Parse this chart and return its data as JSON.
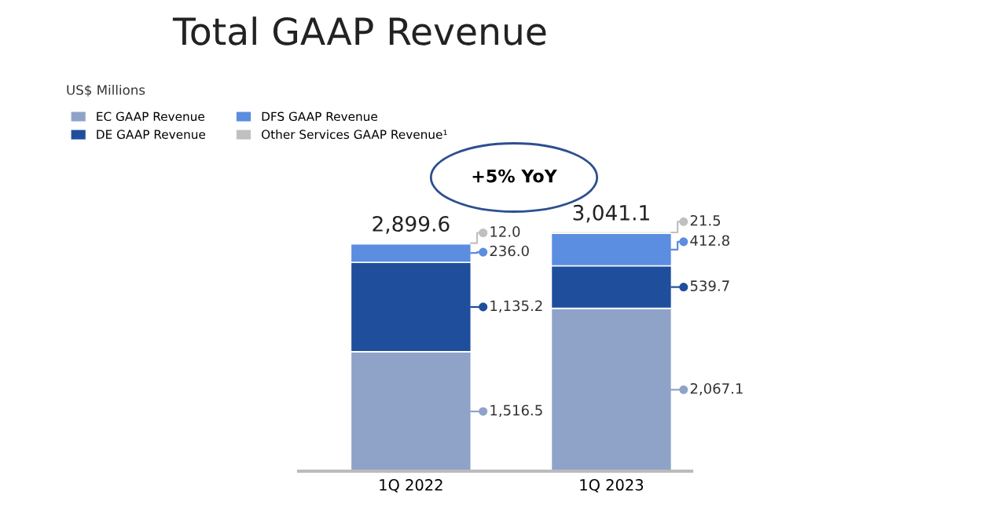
{
  "chart_data": {
    "type": "bar",
    "title": "Total GAAP Revenue",
    "subtitle": "US$ Millions",
    "categories": [
      "1Q 2022",
      "1Q 2023"
    ],
    "stacked": true,
    "legend": "top left",
    "series": [
      {
        "name": "EC GAAP Revenue",
        "color": "#8fa3c9",
        "values": [
          1516.5,
          2067.1
        ],
        "value_labels": [
          "1,516.5",
          "2,067.1"
        ]
      },
      {
        "name": "DE GAAP Revenue",
        "color": "#1f4e9c",
        "values": [
          1135.2,
          539.7
        ],
        "value_labels": [
          "1,135.2",
          "539.7"
        ]
      },
      {
        "name": "DFS GAAP Revenue",
        "color": "#5b8de0",
        "values": [
          236.0,
          412.8
        ],
        "value_labels": [
          "236.0",
          "412.8"
        ]
      },
      {
        "name": "Other Services GAAP Revenue¹",
        "color": "#c0c0c0",
        "values": [
          12.0,
          21.5
        ],
        "value_labels": [
          "12.0",
          "21.5"
        ]
      }
    ],
    "totals": [
      "2,899.6",
      "3,041.1"
    ],
    "annotations": [
      "+5% YoY"
    ]
  }
}
